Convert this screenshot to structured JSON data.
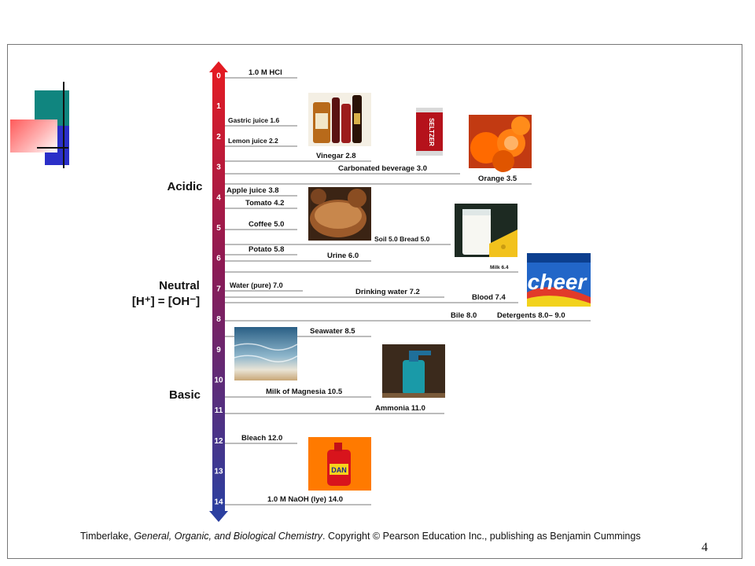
{
  "slide": {
    "page_number": "4"
  },
  "ph_scale": {
    "numbers": [
      "0",
      "1",
      "2",
      "3",
      "4",
      "5",
      "6",
      "7",
      "8",
      "9",
      "10",
      "11",
      "12",
      "13",
      "14"
    ],
    "regions": {
      "acidic": "Acidic",
      "neutral": "Neutral",
      "neutral_formula": "[H⁺] = [OH⁻]",
      "basic": "Basic"
    },
    "substances": [
      {
        "id": "hcl",
        "label": "1.0 M HCl",
        "ph": 0
      },
      {
        "id": "gastric",
        "label": "Gastric juice 1.6",
        "ph": 1.6
      },
      {
        "id": "lemon",
        "label": "Lemon juice 2.2",
        "ph": 2.2
      },
      {
        "id": "vinegar",
        "label": "Vinegar 2.8",
        "ph": 2.8
      },
      {
        "id": "carbonated",
        "label": "Carbonated beverage 3.0",
        "ph": 3.0
      },
      {
        "id": "orange",
        "label": "Orange 3.5",
        "ph": 3.5
      },
      {
        "id": "apple",
        "label": "Apple juice 3.8",
        "ph": 3.8
      },
      {
        "id": "tomato",
        "label": "Tomato 4.2",
        "ph": 4.2
      },
      {
        "id": "coffee",
        "label": "Coffee 5.0",
        "ph": 5.0
      },
      {
        "id": "soil-bread",
        "label": "Soil 5.0 Bread 5.0",
        "ph": 5.0
      },
      {
        "id": "potato",
        "label": "Potato 5.8",
        "ph": 5.8
      },
      {
        "id": "urine",
        "label": "Urine 6.0",
        "ph": 6.0
      },
      {
        "id": "milk",
        "label": "Milk 6.4",
        "ph": 6.4
      },
      {
        "id": "water",
        "label": "Water (pure) 7.0",
        "ph": 7.0
      },
      {
        "id": "drinking-water",
        "label": "Drinking water 7.2",
        "ph": 7.2
      },
      {
        "id": "blood",
        "label": "Blood 7.4",
        "ph": 7.4
      },
      {
        "id": "bile",
        "label": "Bile 8.0",
        "ph": 8.0
      },
      {
        "id": "detergents",
        "label": "Detergents 8.0– 9.0",
        "ph": 8.0
      },
      {
        "id": "seawater",
        "label": "Seawater 8.5",
        "ph": 8.5
      },
      {
        "id": "magnesia",
        "label": "Milk of Magnesia 10.5",
        "ph": 10.5
      },
      {
        "id": "ammonia",
        "label": "Ammonia 11.0",
        "ph": 11.0
      },
      {
        "id": "bleach",
        "label": "Bleach 12.0",
        "ph": 12.0
      },
      {
        "id": "naoh",
        "label": "1.0 M NaOH (lye) 14.0",
        "ph": 14.0
      }
    ],
    "photos": [
      {
        "id": "vinegar-bottles",
        "icon": "vinegar-bottles-photo"
      },
      {
        "id": "soda-can",
        "icon": "soda-can-photo",
        "text": "SELTZER"
      },
      {
        "id": "oranges",
        "icon": "oranges-photo"
      },
      {
        "id": "bread",
        "icon": "bread-photo"
      },
      {
        "id": "milk",
        "icon": "milk-glass-photo"
      },
      {
        "id": "cheer",
        "icon": "detergent-box-photo",
        "text": "cheer"
      },
      {
        "id": "seawater",
        "icon": "seawater-photo"
      },
      {
        "id": "ammonia",
        "icon": "ammonia-bottle-photo"
      },
      {
        "id": "bleach",
        "icon": "bleach-bottle-photo",
        "text": "DAN"
      }
    ]
  },
  "credit": {
    "prefix": "Timberlake, ",
    "book": "General, Organic, and Biological Chemistry",
    "suffix": ".  Copyright © Pearson Education Inc., publishing as Benjamin Cummings"
  },
  "colors": {
    "acid": "#e31b23",
    "mid": "#8b1a55",
    "base": "#2b3fa0"
  }
}
